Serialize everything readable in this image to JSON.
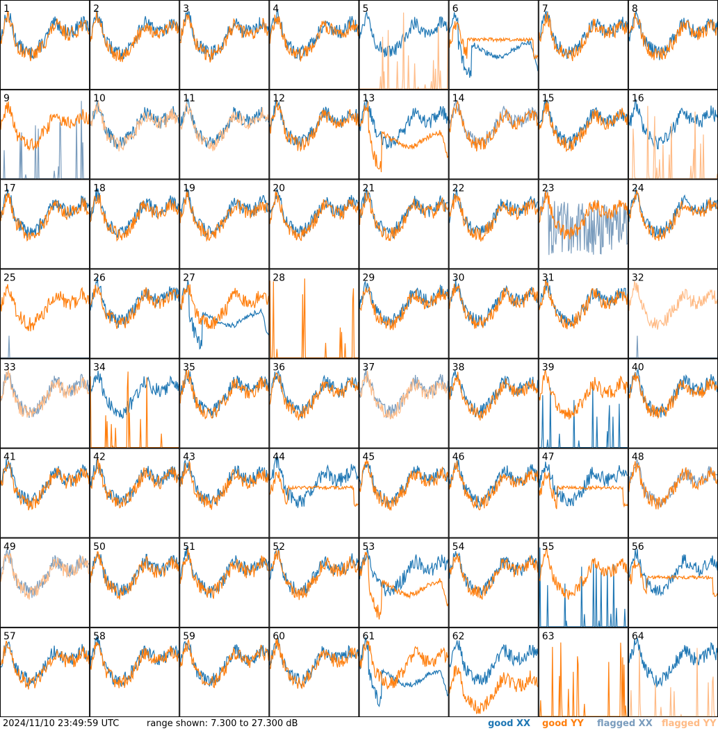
{
  "chart_data": {
    "type": "line",
    "layout": "8x8 grid of small multiples",
    "panel_labels": [
      "1",
      "2",
      "3",
      "4",
      "5",
      "6",
      "7",
      "8",
      "9",
      "10",
      "11",
      "12",
      "13",
      "14",
      "15",
      "16",
      "17",
      "18",
      "19",
      "20",
      "21",
      "22",
      "23",
      "24",
      "25",
      "26",
      "27",
      "28",
      "29",
      "30",
      "31",
      "32",
      "33",
      "34",
      "35",
      "36",
      "37",
      "38",
      "39",
      "40",
      "41",
      "42",
      "43",
      "44",
      "45",
      "46",
      "47",
      "48",
      "49",
      "50",
      "51",
      "52",
      "53",
      "54",
      "55",
      "56",
      "57",
      "58",
      "59",
      "60",
      "61",
      "62",
      "63",
      "64"
    ],
    "ylim": [
      7.3,
      27.3
    ],
    "yunit": "dB",
    "series": [
      {
        "name": "good XX",
        "color": "#1f77b4"
      },
      {
        "name": "good YY",
        "color": "#ff7f0e"
      },
      {
        "name": "flagged XX",
        "color": "#7a9cbd"
      },
      {
        "name": "flagged YY",
        "color": "#ffbb86"
      }
    ],
    "panel_modes": {
      "5": "xx_normal_yy_spikes",
      "6": "dip_both",
      "9": "xx_spikes_flagged",
      "10": "yy_flagged",
      "11": "yy_flagged",
      "13": "yy_dip",
      "14": "xx_flagged",
      "16": "yy_spikes_flagged",
      "23": "xx_noise_flagged",
      "25": "xx_spike_single_flagged",
      "27": "xx_dip",
      "28": "yy_spikes_only",
      "32": "yy_flagged_xx_spike",
      "33": "both_flagged",
      "34": "yy_spikes",
      "37": "both_flagged",
      "39": "xx_spikes",
      "44": "yy_dip_small",
      "47": "yy_dip_small",
      "48": "xx_flagged",
      "49": "both_flagged",
      "53": "yy_dip",
      "55": "xx_spikes_dense",
      "56": "yy_dip_small",
      "61": "xx_dip",
      "62": "yy_low",
      "63": "yy_spikes_only",
      "64": "xx_normal_yy_spikes"
    }
  },
  "footer": {
    "timestamp": "2024/11/10 23:49:59 UTC",
    "range": "range shown: 7.300 to 27.300 dB"
  },
  "legend": [
    {
      "label": "good XX",
      "color": "#1f77b4"
    },
    {
      "label": "good YY",
      "color": "#ff7f0e"
    },
    {
      "label": "flagged XX",
      "color": "#7a9cbd"
    },
    {
      "label": "flagged YY",
      "color": "#ffbb86"
    }
  ]
}
